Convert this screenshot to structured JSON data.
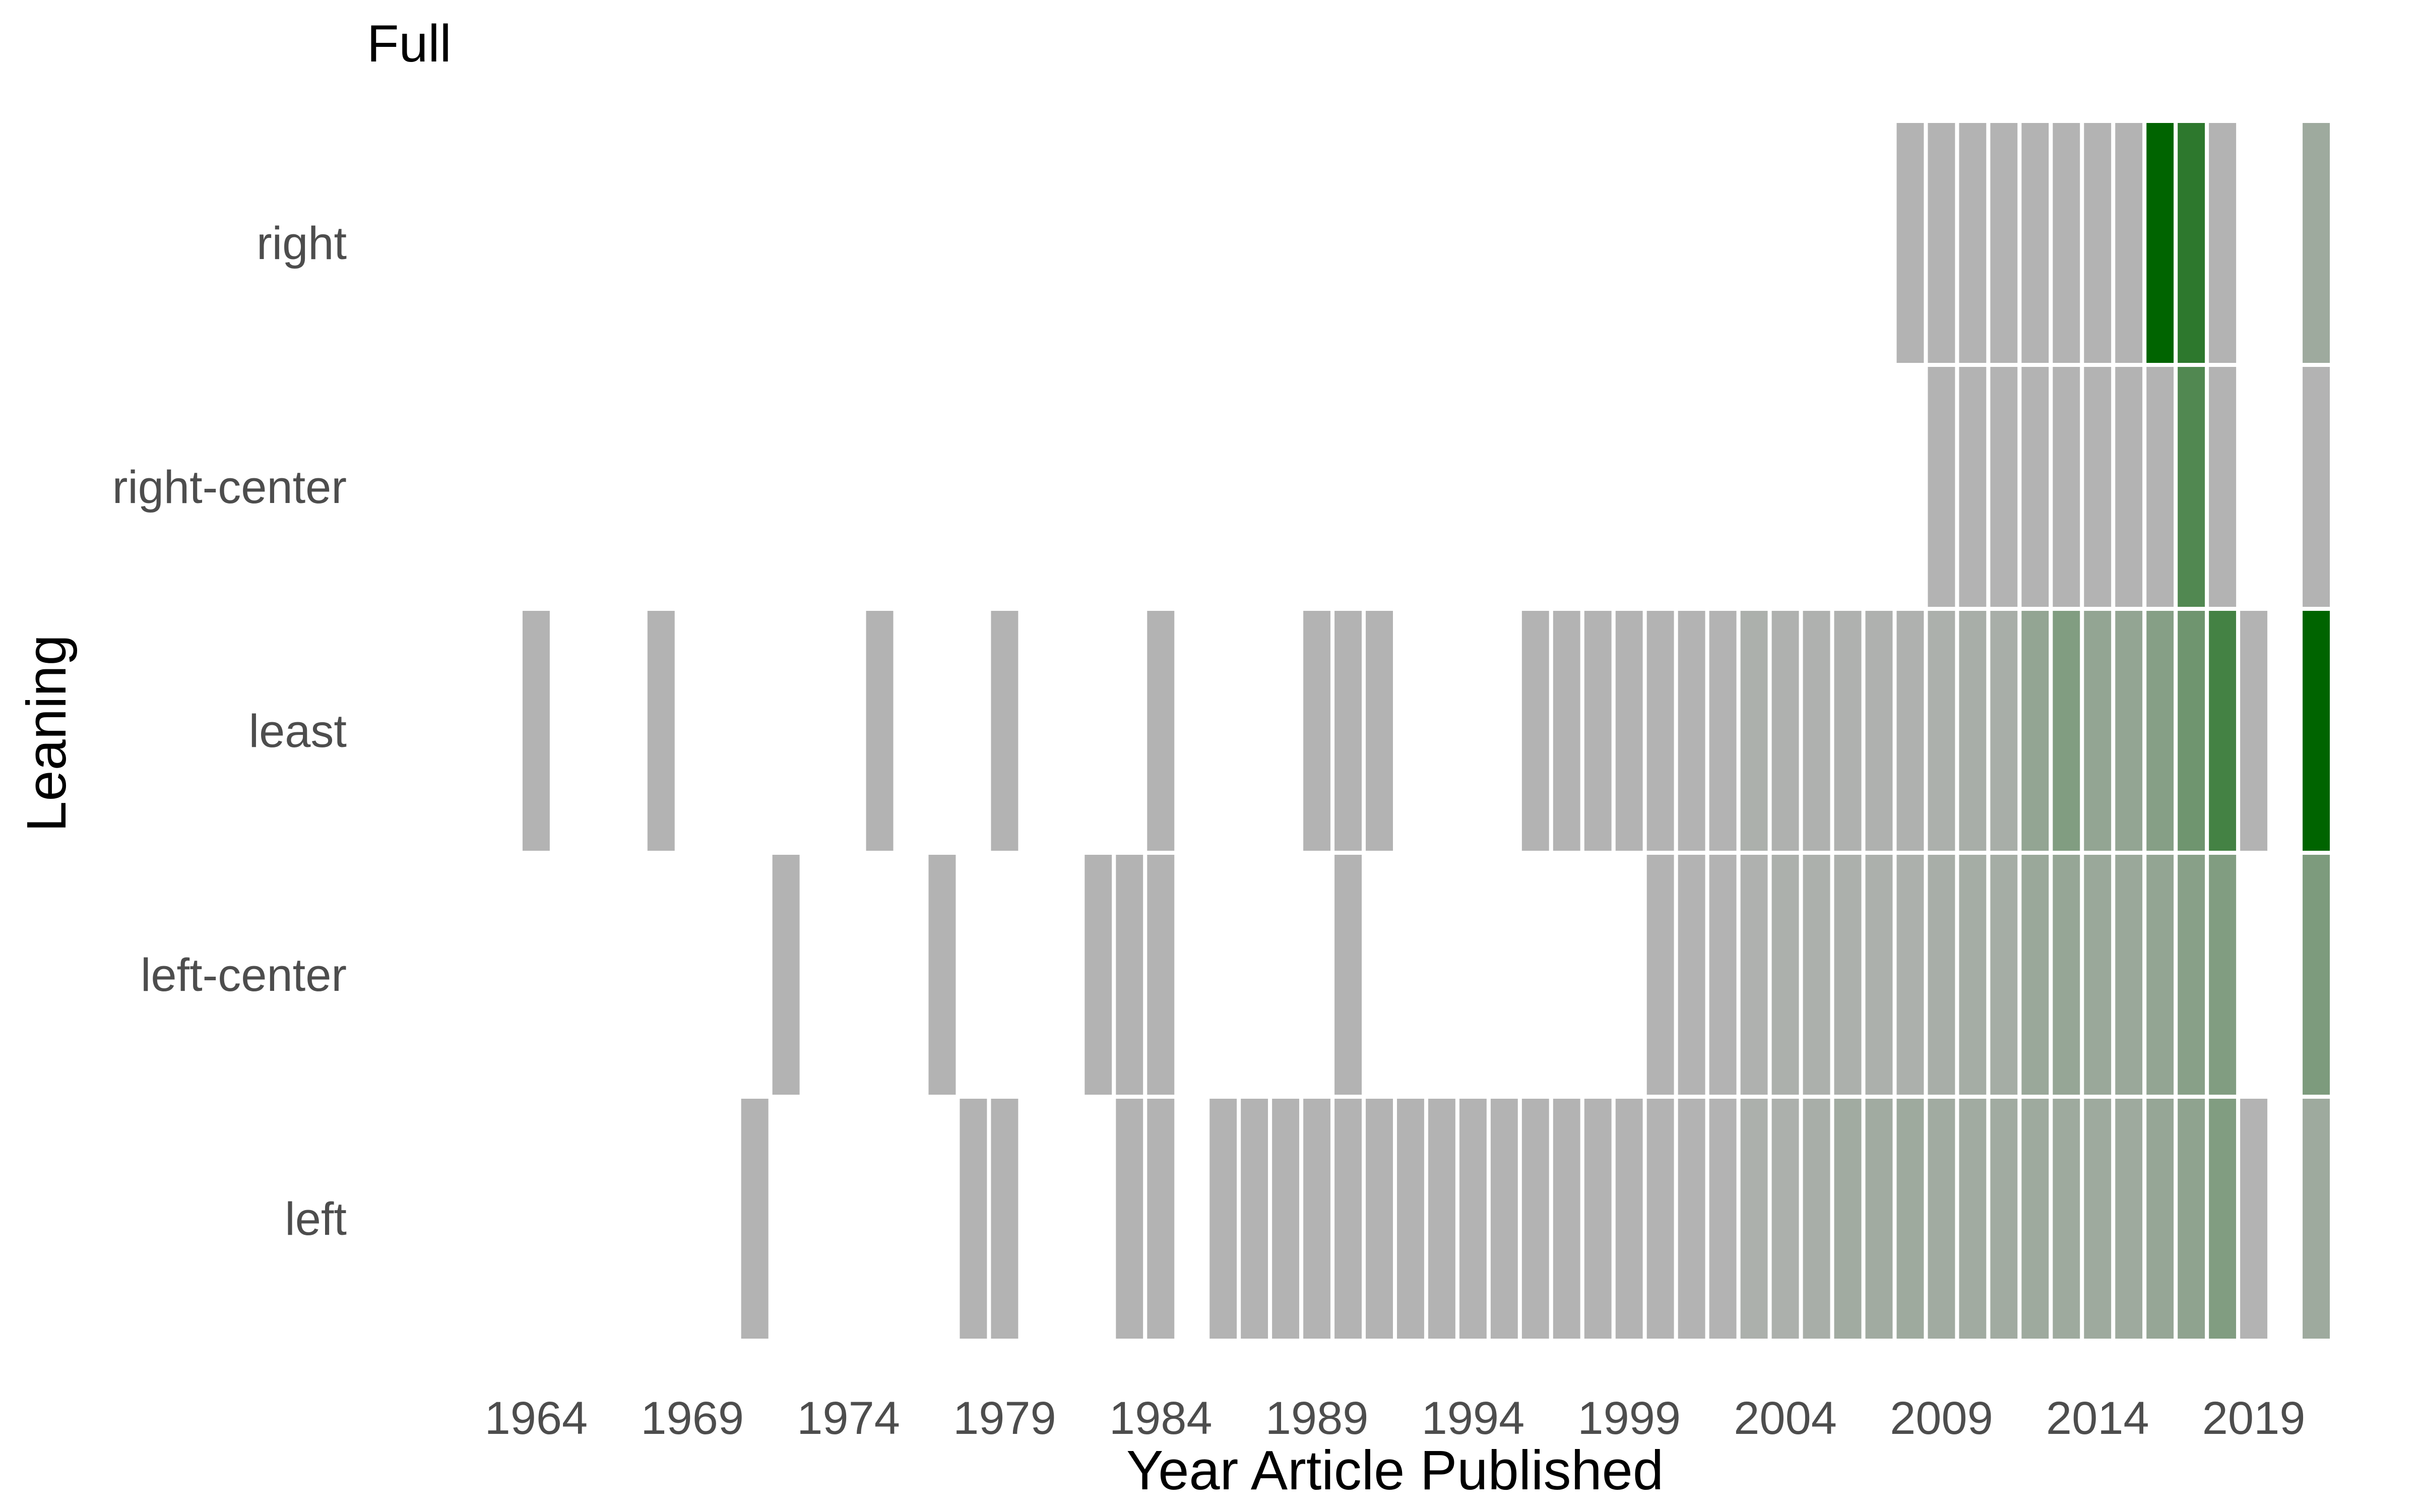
{
  "chart_data": {
    "type": "heatmap",
    "title": "Full",
    "xlabel": "Year Article Published",
    "ylabel": "Leaning",
    "x_tick_labels": [
      "1964",
      "1969",
      "1974",
      "1979",
      "1984",
      "1989",
      "1994",
      "1999",
      "2004",
      "2009",
      "2014",
      "2019"
    ],
    "x_range": [
      1961,
      2022
    ],
    "y_categories": [
      "left",
      "left-center",
      "least",
      "right-center",
      "right"
    ],
    "colors": {
      "low": "#b3b3b3",
      "high": "#006400",
      "grid": "#ffffff"
    },
    "grid": false,
    "legend": "none",
    "cells": {
      "right": [
        [
          2008,
          0
        ],
        [
          2009,
          0
        ],
        [
          2010,
          0
        ],
        [
          2011,
          0
        ],
        [
          2012,
          0
        ],
        [
          2013,
          0
        ],
        [
          2014,
          0
        ],
        [
          2015,
          0
        ],
        [
          2016,
          1.0
        ],
        [
          2017,
          0.75
        ],
        [
          2018,
          0
        ],
        [
          2021,
          0.12
        ]
      ],
      "right-center": [
        [
          2009,
          0
        ],
        [
          2010,
          0
        ],
        [
          2011,
          0
        ],
        [
          2012,
          0
        ],
        [
          2013,
          0
        ],
        [
          2014,
          0
        ],
        [
          2015,
          0
        ],
        [
          2016,
          0
        ],
        [
          2017,
          0.55
        ],
        [
          2018,
          0
        ],
        [
          2021,
          0
        ]
      ],
      "least": [
        [
          1964,
          0
        ],
        [
          1968,
          0
        ],
        [
          1975,
          0
        ],
        [
          1979,
          0
        ],
        [
          1984,
          0
        ],
        [
          1989,
          0
        ],
        [
          1990,
          0
        ],
        [
          1991,
          0
        ],
        [
          1996,
          0
        ],
        [
          1997,
          0
        ],
        [
          1998,
          0
        ],
        [
          1999,
          0
        ],
        [
          2000,
          0
        ],
        [
          2001,
          0
        ],
        [
          2002,
          0
        ],
        [
          2003,
          0.04
        ],
        [
          2004,
          0.02
        ],
        [
          2005,
          0.02
        ],
        [
          2006,
          0.02
        ],
        [
          2007,
          0.02
        ],
        [
          2008,
          0.02
        ],
        [
          2009,
          0.04
        ],
        [
          2010,
          0.06
        ],
        [
          2011,
          0.06
        ],
        [
          2012,
          0.18
        ],
        [
          2013,
          0.28
        ],
        [
          2014,
          0.18
        ],
        [
          2015,
          0.18
        ],
        [
          2016,
          0.25
        ],
        [
          2017,
          0.38
        ],
        [
          2018,
          0.62
        ],
        [
          2019,
          0
        ],
        [
          2021,
          1.0
        ]
      ],
      "left-center": [
        [
          1972,
          0
        ],
        [
          1977,
          0
        ],
        [
          1982,
          0
        ],
        [
          1983,
          0
        ],
        [
          1984,
          0
        ],
        [
          1990,
          0
        ],
        [
          2000,
          0
        ],
        [
          2001,
          0
        ],
        [
          2002,
          0
        ],
        [
          2003,
          0.02
        ],
        [
          2004,
          0.04
        ],
        [
          2005,
          0.04
        ],
        [
          2006,
          0.04
        ],
        [
          2007,
          0.04
        ],
        [
          2008,
          0.04
        ],
        [
          2009,
          0.06
        ],
        [
          2010,
          0.08
        ],
        [
          2011,
          0.08
        ],
        [
          2012,
          0.14
        ],
        [
          2013,
          0.16
        ],
        [
          2014,
          0.14
        ],
        [
          2015,
          0.14
        ],
        [
          2016,
          0.18
        ],
        [
          2017,
          0.24
        ],
        [
          2018,
          0.28
        ],
        [
          2021,
          0.3
        ]
      ],
      "left": [
        [
          1971,
          0
        ],
        [
          1978,
          0
        ],
        [
          1979,
          0
        ],
        [
          1983,
          0
        ],
        [
          1984,
          0
        ],
        [
          1986,
          0
        ],
        [
          1987,
          0
        ],
        [
          1988,
          0
        ],
        [
          1989,
          0
        ],
        [
          1990,
          0
        ],
        [
          1991,
          0
        ],
        [
          1992,
          0
        ],
        [
          1993,
          0
        ],
        [
          1994,
          0
        ],
        [
          1995,
          0
        ],
        [
          1996,
          0
        ],
        [
          1997,
          0
        ],
        [
          1998,
          0
        ],
        [
          1999,
          0
        ],
        [
          2000,
          0
        ],
        [
          2001,
          0
        ],
        [
          2002,
          0
        ],
        [
          2003,
          0.04
        ],
        [
          2004,
          0.04
        ],
        [
          2005,
          0.06
        ],
        [
          2006,
          0.1
        ],
        [
          2007,
          0.1
        ],
        [
          2008,
          0.12
        ],
        [
          2009,
          0.1
        ],
        [
          2010,
          0.1
        ],
        [
          2011,
          0.1
        ],
        [
          2012,
          0.12
        ],
        [
          2013,
          0.12
        ],
        [
          2014,
          0.12
        ],
        [
          2015,
          0.12
        ],
        [
          2016,
          0.16
        ],
        [
          2017,
          0.2
        ],
        [
          2018,
          0.28
        ],
        [
          2019,
          0
        ],
        [
          2021,
          0.12
        ]
      ]
    }
  }
}
